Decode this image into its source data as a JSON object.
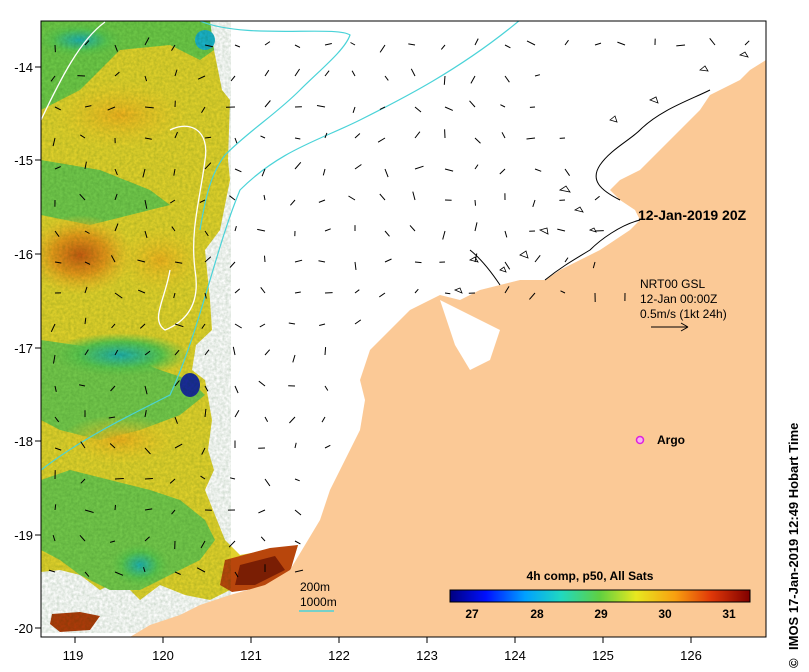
{
  "map": {
    "lon_ticks": [
      "119",
      "120",
      "121",
      "122",
      "123",
      "124",
      "125",
      "126"
    ],
    "lat_ticks": [
      "-14",
      "-15",
      "-16",
      "-17",
      "-18",
      "-19",
      "-20"
    ],
    "date_label": "12-Jan-2019 20Z",
    "current": {
      "line1": "NRT00 GSL",
      "line2": "12-Jan 00:00Z",
      "line3": "0.5m/s (1kt 24h)"
    },
    "argo_label": "Argo",
    "isobaths": {
      "label_200": "200m",
      "label_1000": "1000m"
    },
    "colorbar": {
      "title": "4h comp, p50, All Sats",
      "ticks": [
        "27",
        "28",
        "29",
        "30",
        "31"
      ]
    },
    "credit": "IMOS 17-Jan-2019 12:49 Hobart Time",
    "copyright_symbol": "©",
    "colors": {
      "land": "#fbc996",
      "isobath_200": "#4ad3d8",
      "isobath_1000": "#ffffff",
      "argo": "#dd22dd"
    }
  }
}
